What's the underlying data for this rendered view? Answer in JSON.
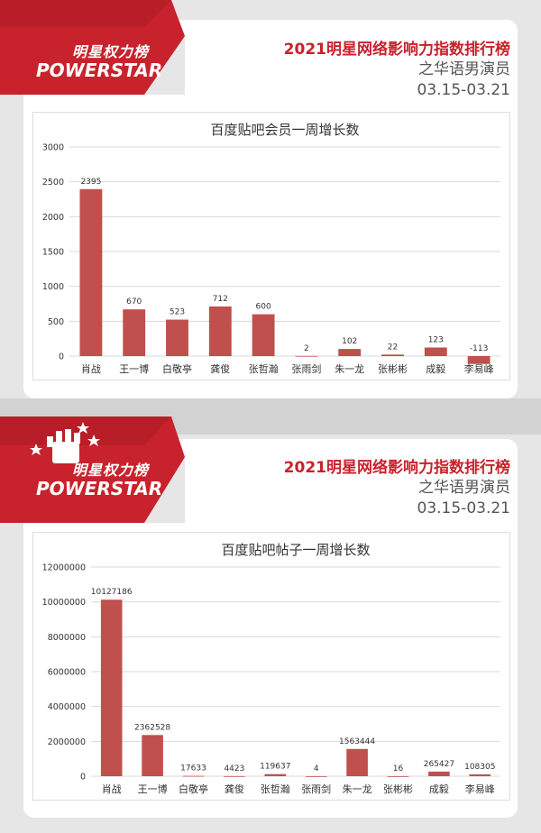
{
  "header": {
    "brand_cn": "明星权力榜",
    "brand_en": "POWERSTAR",
    "title": "2021明星网络影响力指数排行榜",
    "subtitle": "之华语男演员",
    "date_range": "03.15-03.21"
  },
  "colors": {
    "accent": "#c8222c",
    "bar": "#c0504d"
  },
  "chart_data": [
    {
      "type": "bar",
      "title": "百度贴吧会员一周增长数",
      "categories": [
        "肖战",
        "王一博",
        "白敬亭",
        "龚俊",
        "张哲瀚",
        "张雨剑",
        "朱一龙",
        "张彬彬",
        "成毅",
        "李易峰"
      ],
      "values": [
        2395,
        670,
        523,
        712,
        600,
        2,
        102,
        22,
        123,
        -113
      ],
      "value_labels": [
        "2395",
        "670",
        "523",
        "712",
        "600",
        "2",
        "102",
        "22",
        "123",
        "-113"
      ],
      "ylim": [
        0,
        3000
      ],
      "yticks": [
        0,
        500,
        1000,
        1500,
        2000,
        2500,
        3000
      ],
      "ytick_labels": [
        "0",
        "500",
        "1000",
        "1500",
        "2000",
        "2500",
        "3000"
      ],
      "grid": true,
      "xlabel": "",
      "ylabel": ""
    },
    {
      "type": "bar",
      "title": "百度贴吧帖子一周增长数",
      "categories": [
        "肖战",
        "王一博",
        "白敬亭",
        "龚俊",
        "张哲瀚",
        "张雨剑",
        "朱一龙",
        "张彬彬",
        "成毅",
        "李易峰"
      ],
      "values": [
        10127186,
        2362528,
        17633,
        4423,
        119637,
        4,
        1563444,
        16,
        265427,
        108305
      ],
      "value_labels": [
        "10127186",
        "2362528",
        "17633",
        "4423",
        "119637",
        "4",
        "1563444",
        "16",
        "265427",
        "108305"
      ],
      "ylim": [
        0,
        12000000
      ],
      "yticks": [
        0,
        2000000,
        4000000,
        6000000,
        8000000,
        10000000,
        12000000
      ],
      "ytick_labels": [
        "0",
        "2000000",
        "4000000",
        "6000000",
        "8000000",
        "10000000",
        "12000000"
      ],
      "grid": true,
      "xlabel": "",
      "ylabel": ""
    }
  ]
}
